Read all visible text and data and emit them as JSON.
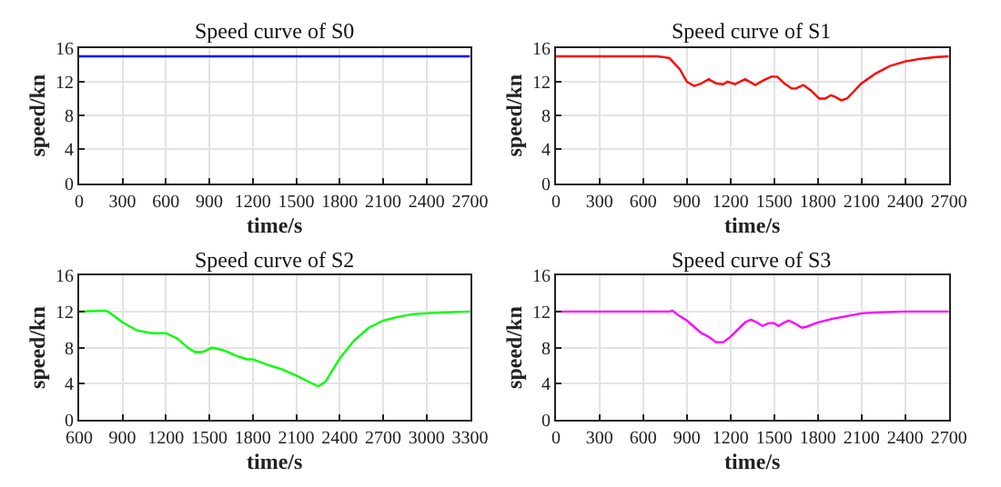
{
  "chart_data": [
    {
      "type": "line",
      "title": "Speed curve of S0",
      "xlabel": "time/s",
      "ylabel": "speed/kn",
      "xlim": [
        0,
        2700
      ],
      "xticks": [
        0,
        300,
        600,
        900,
        1200,
        1500,
        1800,
        2100,
        2400,
        2700
      ],
      "ylim": [
        0,
        16
      ],
      "yticks": [
        0,
        4,
        8,
        12,
        16
      ],
      "grid": true,
      "marker": "none",
      "line_style": "solid",
      "series": [
        {
          "color": "#0000ff",
          "x": [
            0,
            2700
          ],
          "values": [
            15,
            15
          ]
        }
      ]
    },
    {
      "type": "line",
      "title": "Speed curve of S1",
      "xlabel": "time/s",
      "ylabel": "speed/kn",
      "xlim": [
        0,
        2700
      ],
      "xticks": [
        0,
        300,
        600,
        900,
        1200,
        1500,
        1800,
        2100,
        2400,
        2700
      ],
      "ylim": [
        0,
        16
      ],
      "yticks": [
        0,
        4,
        8,
        12,
        16
      ],
      "grid": true,
      "marker": "none",
      "line_style": "solid",
      "series": [
        {
          "color": "#ff0000",
          "x": [
            0,
            700,
            780,
            850,
            900,
            950,
            1000,
            1050,
            1100,
            1150,
            1180,
            1230,
            1300,
            1370,
            1430,
            1480,
            1520,
            1570,
            1620,
            1650,
            1700,
            1750,
            1810,
            1850,
            1890,
            1920,
            1960,
            2000,
            2100,
            2200,
            2300,
            2400,
            2500,
            2600,
            2700
          ],
          "values": [
            15,
            15,
            14.8,
            13.5,
            12,
            11.5,
            11.8,
            12.3,
            11.8,
            11.7,
            12,
            11.7,
            12.3,
            11.6,
            12.2,
            12.6,
            12.6,
            11.8,
            11.2,
            11.2,
            11.6,
            11,
            10,
            10,
            10.4,
            10.2,
            9.8,
            10,
            11.8,
            13,
            13.9,
            14.4,
            14.7,
            14.9,
            15
          ]
        }
      ]
    },
    {
      "type": "line",
      "title": "Speed curve of S2",
      "xlabel": "time/s",
      "ylabel": "speed/kn",
      "xlim": [
        600,
        3300
      ],
      "xticks": [
        600,
        900,
        1200,
        1500,
        1800,
        2100,
        2400,
        2700,
        3000,
        3300
      ],
      "ylim": [
        0,
        16
      ],
      "yticks": [
        0,
        4,
        8,
        12,
        16
      ],
      "grid": true,
      "marker": "none",
      "line_style": "solid",
      "series": [
        {
          "color": "#00ff00",
          "x": [
            600,
            780,
            800,
            900,
            1000,
            1100,
            1200,
            1280,
            1350,
            1400,
            1450,
            1520,
            1600,
            1700,
            1760,
            1800,
            1900,
            2000,
            2100,
            2200,
            2250,
            2300,
            2400,
            2500,
            2600,
            2700,
            2800,
            2900,
            3000,
            3100,
            3300
          ],
          "values": [
            12,
            12.1,
            12,
            10.8,
            9.9,
            9.6,
            9.6,
            9,
            8,
            7.5,
            7.5,
            8,
            7.7,
            7,
            6.7,
            6.7,
            6.1,
            5.6,
            4.9,
            4.1,
            3.7,
            4.2,
            6.8,
            8.8,
            10.2,
            11,
            11.4,
            11.7,
            11.8,
            11.9,
            12
          ]
        }
      ]
    },
    {
      "type": "line",
      "title": "Speed curve of S3",
      "xlabel": "time/s",
      "ylabel": "speed/kn",
      "xlim": [
        0,
        2700
      ],
      "xticks": [
        0,
        300,
        600,
        900,
        1200,
        1500,
        1800,
        2100,
        2400,
        2700
      ],
      "ylim": [
        0,
        16
      ],
      "yticks": [
        0,
        4,
        8,
        12,
        16
      ],
      "grid": true,
      "marker": "none",
      "line_style": "solid",
      "series": [
        {
          "color": "#ff00ff",
          "x": [
            0,
            780,
            800,
            850,
            900,
            950,
            1000,
            1050,
            1100,
            1150,
            1200,
            1250,
            1300,
            1340,
            1380,
            1420,
            1460,
            1500,
            1530,
            1570,
            1600,
            1640,
            1690,
            1720,
            1800,
            1900,
            2000,
            2100,
            2200,
            2400,
            2700
          ],
          "values": [
            12,
            12,
            12.1,
            11.5,
            11,
            10.3,
            9.6,
            9.2,
            8.6,
            8.6,
            9.2,
            10,
            10.8,
            11.1,
            10.8,
            10.4,
            10.7,
            10.7,
            10.4,
            10.8,
            11,
            10.7,
            10.2,
            10.3,
            10.8,
            11.2,
            11.5,
            11.8,
            11.9,
            12,
            12
          ]
        }
      ]
    }
  ]
}
